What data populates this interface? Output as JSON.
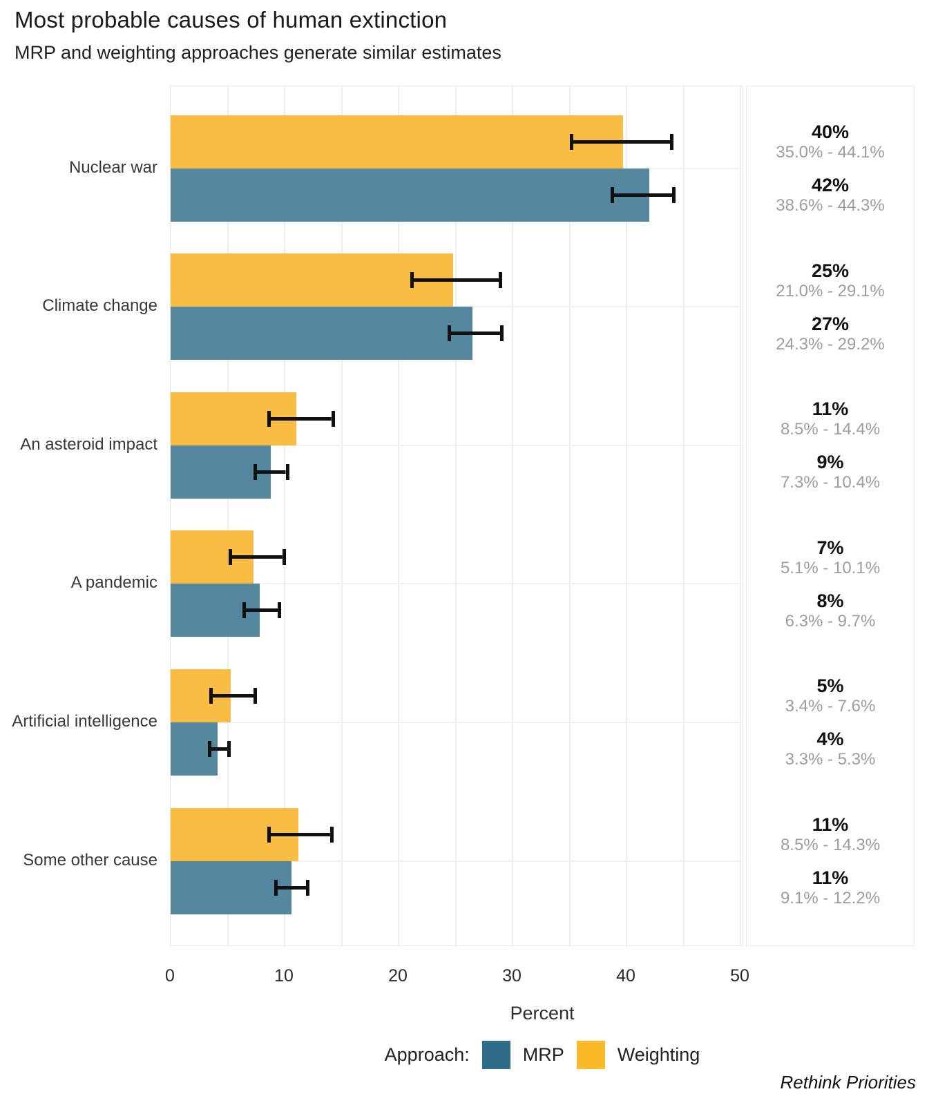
{
  "header": {
    "title": "Most probable causes of human extinction",
    "subtitle": "MRP and weighting approaches generate similar estimates"
  },
  "chart_data": {
    "type": "bar",
    "orientation": "horizontal",
    "title": "Most probable causes of human extinction",
    "subtitle": "MRP and weighting approaches generate similar estimates",
    "xlabel": "Percent",
    "x_axis": {
      "min": 0,
      "max": 50.2,
      "ticks": [
        0,
        10,
        20,
        30,
        40,
        50
      ],
      "grid_step": 5
    },
    "legend": {
      "title": "Approach:",
      "position": "bottom",
      "series": [
        {
          "name": "MRP"
        },
        {
          "name": "Weighting"
        }
      ]
    },
    "categories": [
      "Nuclear war",
      "Climate change",
      "An asteroid impact",
      "A pandemic",
      "Artificial intelligence",
      "Some other cause"
    ],
    "rows": [
      {
        "category": "Nuclear war",
        "weighting": {
          "label": "40%",
          "ci_label": "35.0% - 44.1%",
          "value": 39.7,
          "ci": [
            35.0,
            44.1
          ]
        },
        "mrp": {
          "label": "42%",
          "ci_label": "38.6% - 44.3%",
          "value": 42.0,
          "ci": [
            38.6,
            44.3
          ]
        }
      },
      {
        "category": "Climate change",
        "weighting": {
          "label": "25%",
          "ci_label": "21.0% - 29.1%",
          "value": 24.8,
          "ci": [
            21.0,
            29.1
          ]
        },
        "mrp": {
          "label": "27%",
          "ci_label": "24.3% - 29.2%",
          "value": 26.5,
          "ci": [
            24.3,
            29.2
          ]
        }
      },
      {
        "category": "An asteroid impact",
        "weighting": {
          "label": "11%",
          "ci_label": "8.5% - 14.4%",
          "value": 11.0,
          "ci": [
            8.5,
            14.4
          ]
        },
        "mrp": {
          "label": "9%",
          "ci_label": "7.3% - 10.4%",
          "value": 8.8,
          "ci": [
            7.3,
            10.4
          ]
        }
      },
      {
        "category": "A pandemic",
        "weighting": {
          "label": "7%",
          "ci_label": "5.1% - 10.1%",
          "value": 7.3,
          "ci": [
            5.1,
            10.1
          ]
        },
        "mrp": {
          "label": "8%",
          "ci_label": "6.3% - 9.7%",
          "value": 7.8,
          "ci": [
            6.3,
            9.7
          ]
        }
      },
      {
        "category": "Artificial intelligence",
        "weighting": {
          "label": "5%",
          "ci_label": "3.4% - 7.6%",
          "value": 5.3,
          "ci": [
            3.4,
            7.6
          ]
        },
        "mrp": {
          "label": "4%",
          "ci_label": "3.3% - 5.3%",
          "value": 4.1,
          "ci": [
            3.3,
            5.3
          ]
        }
      },
      {
        "category": "Some other cause",
        "weighting": {
          "label": "11%",
          "ci_label": "8.5% - 14.3%",
          "value": 11.2,
          "ci": [
            8.5,
            14.3
          ]
        },
        "mrp": {
          "label": "11%",
          "ci_label": "9.1% - 12.2%",
          "value": 10.6,
          "ci": [
            9.1,
            12.2
          ]
        }
      }
    ]
  },
  "colors": {
    "weighting_bar": "#FABD43",
    "weighting_legend": "#FBB827",
    "mrp_bar": "#55879E",
    "mrp_legend": "#2E6C8A",
    "error_bar": "#111111"
  },
  "footer": {
    "source": "Rethink Priorities"
  }
}
